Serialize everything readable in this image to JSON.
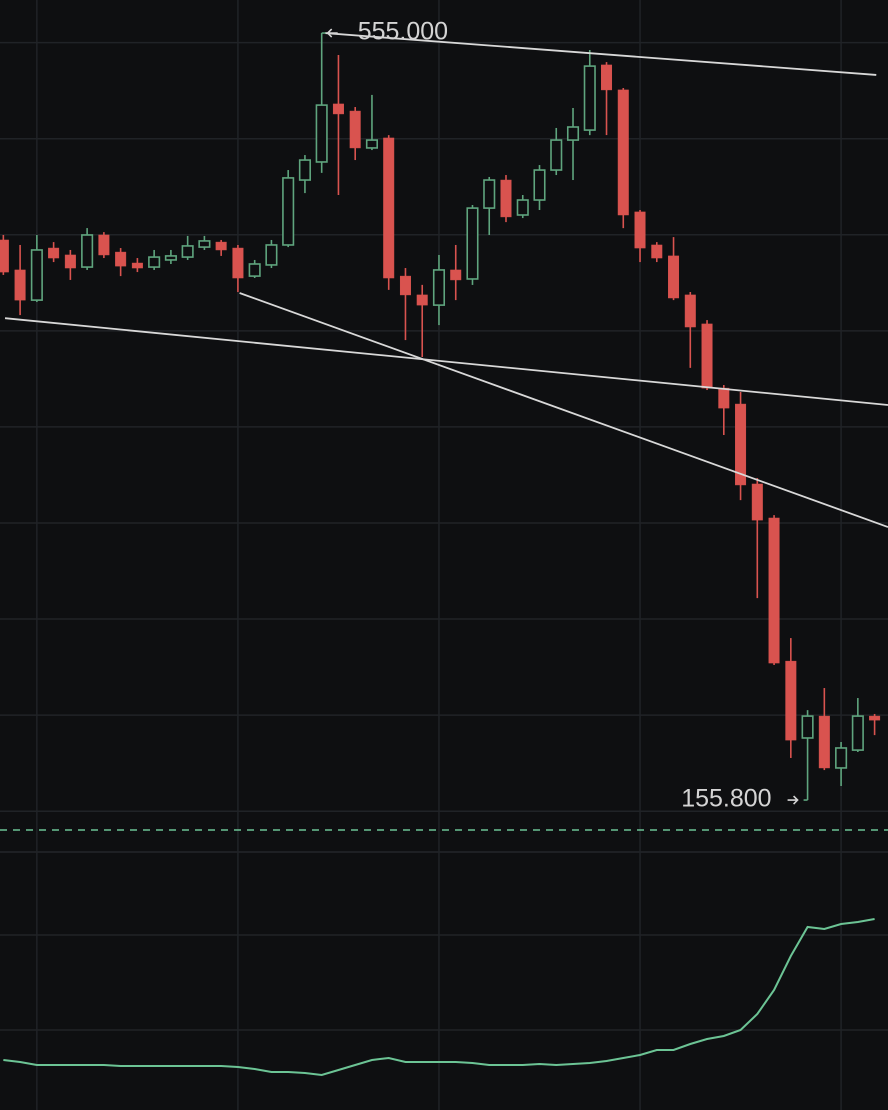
{
  "chart_data": {
    "type": "candlestick",
    "up_color": "#5fa57e",
    "down_color": "#d9534f",
    "line_color": "#6cc495",
    "drawing_color": "#d8d8d8",
    "grid": true,
    "xlim": [
      -0.2,
      52.8
    ],
    "xticks": [
      2,
      14,
      26,
      38,
      50
    ],
    "ylim": [
      129.8,
      572.2
    ],
    "yticks": [
      550,
      500,
      450,
      400,
      350,
      300,
      250,
      200,
      150
    ],
    "y2lim": [
      0,
      100
    ],
    "y2ticks": [
      35,
      82.5
    ],
    "open": [
      447.3,
      431.7,
      416.0,
      443.1,
      439.5,
      433.2,
      449.9,
      441.0,
      435.3,
      433.2,
      436.9,
      438.4,
      443.6,
      446.2,
      443.1,
      428.5,
      434.3,
      444.7,
      478.5,
      487.9,
      518.1,
      514.4,
      495.2,
      500.4,
      428.5,
      418.7,
      413.4,
      431.7,
      427.0,
      463.9,
      478.5,
      460.3,
      468.1,
      483.7,
      499.3,
      504.5,
      538.4,
      525.4,
      461.9,
      444.7,
      439.0,
      418.7,
      403.6,
      370.2,
      361.9,
      320.3,
      302.6,
      228.1,
      188.1,
      199.5,
      172.5,
      181.8,
      199.5
    ],
    "high": [
      449.9,
      444.7,
      449.9,
      446.2,
      442.1,
      453.5,
      451.4,
      443.1,
      437.9,
      442.1,
      442.1,
      449.4,
      449.4,
      447.3,
      444.7,
      436.9,
      447.3,
      483.7,
      491.5,
      555.0,
      543.6,
      516.5,
      522.8,
      501.9,
      432.7,
      423.9,
      439.5,
      444.7,
      465.5,
      480.1,
      481.1,
      470.7,
      486.3,
      505.6,
      516.0,
      546.2,
      539.9,
      526.4,
      462.9,
      446.2,
      448.8,
      420.2,
      405.6,
      371.8,
      368.2,
      323.4,
      304.1,
      240.1,
      202.6,
      214.1,
      186.0,
      208.9,
      200.6
    ],
    "low": [
      429.1,
      408.2,
      415.0,
      435.8,
      426.5,
      431.7,
      437.9,
      428.5,
      430.6,
      431.7,
      434.8,
      436.9,
      442.1,
      439.0,
      420.2,
      427.5,
      432.7,
      443.6,
      471.7,
      482.2,
      470.7,
      488.9,
      494.1,
      421.3,
      395.2,
      386.4,
      403.0,
      416.0,
      423.9,
      449.9,
      456.6,
      458.7,
      462.9,
      481.1,
      478.5,
      501.9,
      501.9,
      453.5,
      435.8,
      435.8,
      416.0,
      380.7,
      369.2,
      345.8,
      311.9,
      260.9,
      226.1,
      177.7,
      155.8,
      171.4,
      163.1,
      180.8,
      189.6
    ],
    "close": [
      430.6,
      416.0,
      442.1,
      437.9,
      432.7,
      449.9,
      439.5,
      433.7,
      432.7,
      438.4,
      439.0,
      444.2,
      446.8,
      442.1,
      427.5,
      434.8,
      444.7,
      479.6,
      488.9,
      517.5,
      512.9,
      495.2,
      499.3,
      427.5,
      418.7,
      413.4,
      431.7,
      426.5,
      463.9,
      478.5,
      459.3,
      468.1,
      483.7,
      499.3,
      506.1,
      537.8,
      525.4,
      460.3,
      443.1,
      437.9,
      417.1,
      402.0,
      370.2,
      359.8,
      319.8,
      301.5,
      227.1,
      187.0,
      199.5,
      172.5,
      182.9,
      199.5,
      197.4
    ],
    "indicator": [
      20,
      19,
      17.5,
      17.5,
      17.5,
      17.5,
      17.5,
      17,
      17,
      17,
      17,
      17,
      17,
      17,
      16.5,
      15.5,
      14,
      14,
      13.5,
      12.5,
      15,
      17.5,
      20,
      21,
      19,
      19,
      19,
      19,
      18.5,
      17.5,
      17.5,
      17.5,
      18,
      17.5,
      18,
      18.5,
      19.5,
      21,
      22.5,
      25,
      25,
      28,
      30.5,
      32,
      35,
      43,
      55,
      72,
      86.5,
      85.5,
      88,
      89,
      90.5
    ],
    "price_line": 140.2,
    "annotations": [
      {
        "label": "555.000",
        "value": 555.0,
        "side": "high"
      },
      {
        "label": "155.800",
        "value": 155.8,
        "side": "low"
      }
    ],
    "trend_lines": [
      {
        "x": [
          19.2,
          52.1
        ],
        "y": [
          555.0,
          533.2
        ]
      },
      {
        "x": [
          0.1,
          52.8
        ],
        "y": [
          406.6,
          361.4
        ]
      },
      {
        "x": [
          14.1,
          52.8
        ],
        "y": [
          419.7,
          297.9
        ]
      }
    ]
  }
}
